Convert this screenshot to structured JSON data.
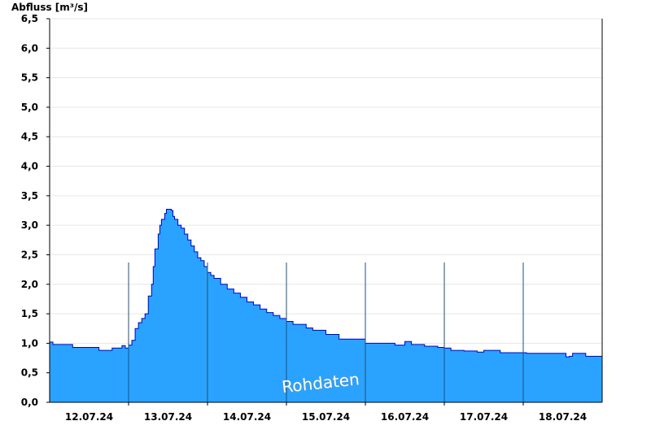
{
  "chart_data": {
    "type": "area",
    "ylabel": "Abfluss [m³/s]",
    "xlabel": "",
    "ylim": [
      0,
      6.5
    ],
    "yticks": [
      {
        "value": 0.0,
        "label": "0,0"
      },
      {
        "value": 0.5,
        "label": "0,5"
      },
      {
        "value": 1.0,
        "label": "1,0"
      },
      {
        "value": 1.5,
        "label": "1,5"
      },
      {
        "value": 2.0,
        "label": "2,0"
      },
      {
        "value": 2.5,
        "label": "2,5"
      },
      {
        "value": 3.0,
        "label": "3,0"
      },
      {
        "value": 3.5,
        "label": "3,5"
      },
      {
        "value": 4.0,
        "label": "4,0"
      },
      {
        "value": 4.5,
        "label": "4,5"
      },
      {
        "value": 5.0,
        "label": "5,0"
      },
      {
        "value": 5.5,
        "label": "5,5"
      },
      {
        "value": 6.0,
        "label": "6,0"
      },
      {
        "value": 6.5,
        "label": "6,5"
      }
    ],
    "x_unit": "hours",
    "xlim": [
      0,
      168
    ],
    "xticks": [
      {
        "value": 12,
        "label": "12.07.24"
      },
      {
        "value": 36,
        "label": "13.07.24"
      },
      {
        "value": 60,
        "label": "14.07.24"
      },
      {
        "value": 84,
        "label": "15.07.24"
      },
      {
        "value": 108,
        "label": "16.07.24"
      },
      {
        "value": 132,
        "label": "17.07.24"
      },
      {
        "value": 156,
        "label": "18.07.24"
      }
    ],
    "day_dividers": [
      24,
      48,
      72,
      96,
      120,
      144
    ],
    "grid": "horizontal",
    "fill_color": "#29a3ff",
    "line_color": "#0000cc",
    "annotation": "Rohdaten",
    "x": [
      0,
      1,
      7,
      15,
      16,
      19,
      22,
      23,
      24,
      25,
      26,
      27,
      28,
      29,
      30,
      31,
      31.5,
      32,
      33,
      33.5,
      34,
      35,
      35.5,
      36,
      37,
      37.5,
      38,
      39,
      40,
      41,
      42,
      43,
      44,
      45,
      46,
      47,
      48,
      49,
      50,
      52,
      54,
      56,
      58,
      60,
      62,
      64,
      66,
      68,
      70,
      72,
      74,
      78,
      80,
      84,
      88,
      96,
      105,
      108,
      110,
      114,
      118,
      120,
      122,
      126,
      130,
      132,
      137,
      145,
      152,
      155,
      157,
      158,
      159,
      163,
      168
    ],
    "y": [
      1.02,
      0.98,
      0.93,
      0.88,
      0.88,
      0.92,
      0.96,
      0.92,
      0.97,
      1.05,
      1.25,
      1.35,
      1.42,
      1.5,
      1.8,
      2.0,
      2.3,
      2.6,
      2.85,
      3.0,
      3.1,
      3.2,
      3.27,
      3.27,
      3.25,
      3.15,
      3.1,
      3.0,
      2.95,
      2.85,
      2.75,
      2.65,
      2.55,
      2.45,
      2.4,
      2.3,
      2.2,
      2.15,
      2.1,
      2.0,
      1.92,
      1.85,
      1.78,
      1.7,
      1.65,
      1.58,
      1.52,
      1.47,
      1.42,
      1.37,
      1.32,
      1.26,
      1.22,
      1.15,
      1.07,
      1.0,
      0.97,
      1.03,
      0.98,
      0.95,
      0.93,
      0.92,
      0.88,
      0.87,
      0.85,
      0.88,
      0.84,
      0.83,
      0.83,
      0.83,
      0.77,
      0.78,
      0.83,
      0.78,
      0.77
    ]
  }
}
